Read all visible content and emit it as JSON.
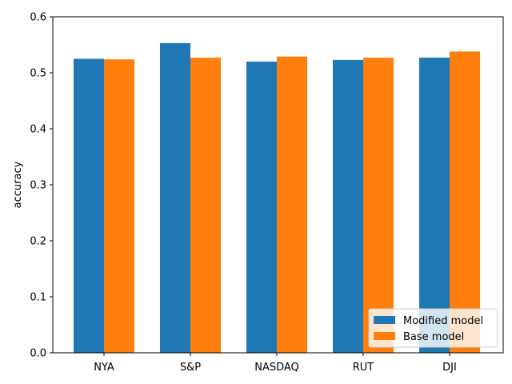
{
  "chart_data": {
    "type": "bar",
    "title": "",
    "xlabel": "",
    "ylabel": "accuracy",
    "ylim": [
      0,
      0.6
    ],
    "yticks": [
      "0.0",
      "0.1",
      "0.2",
      "0.3",
      "0.4",
      "0.5",
      "0.6"
    ],
    "categories": [
      "NYA",
      "S&P",
      "NASDAQ",
      "RUT",
      "DJI"
    ],
    "series": [
      {
        "name": "Modified model",
        "color": "#1f77b4",
        "values": [
          0.525,
          0.553,
          0.52,
          0.523,
          0.527
        ]
      },
      {
        "name": "Base model",
        "color": "#ff7f0e",
        "values": [
          0.524,
          0.527,
          0.529,
          0.527,
          0.538
        ]
      }
    ],
    "grid": false,
    "legend_position": "bottom-right"
  }
}
